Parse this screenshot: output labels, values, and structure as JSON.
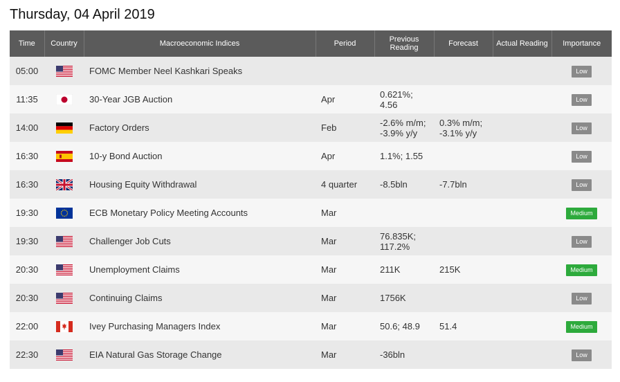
{
  "title": "Thursday, 04 April 2019",
  "columns": {
    "time": "Time",
    "country": "Country",
    "indices": "Macroeconomic Indices",
    "period": "Period",
    "previous": "Previous Reading",
    "forecast": "Forecast",
    "actual": "Actual Reading",
    "importance": "Importance"
  },
  "colors": {
    "low": "#8a8a8a",
    "medium": "#2daa3c",
    "header_bg": "#5b5b5b"
  },
  "rows": [
    {
      "time": "05:00",
      "country": "us-flag-icon",
      "indicator": "FOMC Member Neel Kashkari Speaks",
      "period": "",
      "previous": "",
      "forecast": "",
      "actual": "",
      "importance": "Low"
    },
    {
      "time": "11:35",
      "country": "jp-flag-icon",
      "indicator": "30-Year JGB Auction",
      "period": "Apr",
      "previous": "0.621%; 4.56",
      "forecast": "",
      "actual": "",
      "importance": "Low"
    },
    {
      "time": "14:00",
      "country": "de-flag-icon",
      "indicator": "Factory Orders",
      "period": "Feb",
      "previous": "-2.6% m/m; -3.9% y/y",
      "forecast": "0.3% m/m; -3.1% y/y",
      "actual": "",
      "importance": "Low"
    },
    {
      "time": "16:30",
      "country": "es-flag-icon",
      "indicator": "10-y Bond Auction",
      "period": "Apr",
      "previous": "1.1%; 1.55",
      "forecast": "",
      "actual": "",
      "importance": "Low"
    },
    {
      "time": "16:30",
      "country": "gb-flag-icon",
      "indicator": "Housing Equity Withdrawal",
      "period": "4 quarter",
      "previous": "-8.5bln",
      "forecast": "-7.7bln",
      "actual": "",
      "importance": "Low"
    },
    {
      "time": "19:30",
      "country": "eu-flag-icon",
      "indicator": "ECB Monetary Policy Meeting Accounts",
      "period": "Mar",
      "previous": "",
      "forecast": "",
      "actual": "",
      "importance": "Medium"
    },
    {
      "time": "19:30",
      "country": "us-flag-icon",
      "indicator": "Challenger Job Cuts",
      "period": "Mar",
      "previous": "76.835K; 117.2%",
      "forecast": "",
      "actual": "",
      "importance": "Low"
    },
    {
      "time": "20:30",
      "country": "us-flag-icon",
      "indicator": "Unemployment Claims",
      "period": "Mar",
      "previous": "211K",
      "forecast": "215K",
      "actual": "",
      "importance": "Medium"
    },
    {
      "time": "20:30",
      "country": "us-flag-icon",
      "indicator": "Continuing Claims",
      "period": "Mar",
      "previous": "1756K",
      "forecast": "",
      "actual": "",
      "importance": "Low"
    },
    {
      "time": "22:00",
      "country": "ca-flag-icon",
      "indicator": "Ivey Purchasing Managers Index",
      "period": "Mar",
      "previous": "50.6; 48.9",
      "forecast": "51.4",
      "actual": "",
      "importance": "Medium"
    },
    {
      "time": "22:30",
      "country": "us-flag-icon",
      "indicator": "EIA Natural Gas Storage Change",
      "period": "Mar",
      "previous": "-36bln",
      "forecast": "",
      "actual": "",
      "importance": "Low"
    }
  ]
}
